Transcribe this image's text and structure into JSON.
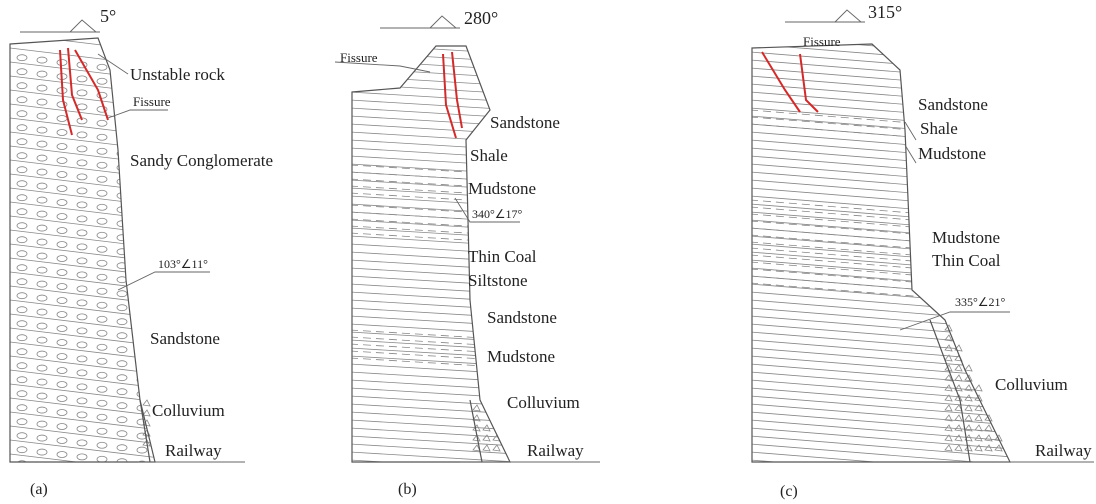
{
  "panels": [
    {
      "orientation": "5°",
      "caption": "(a)",
      "labels": [
        "Unstable rock",
        "Fissure",
        "Sandy Conglomerate",
        "103°∠11°",
        "Sandstone",
        "Colluvium",
        "Railway"
      ]
    },
    {
      "orientation": "280°",
      "caption": "(b)",
      "labels": [
        "Fissure",
        "Sandstone",
        "Shale",
        "Mudstone",
        "340°∠17°",
        "Thin Coal",
        "Siltstone",
        "Sandstone",
        "Mudstone",
        "Colluvium",
        "Railway"
      ]
    },
    {
      "orientation": "315°",
      "caption": "(c)",
      "labels": [
        "Fissure",
        "Sandstone",
        "Shale",
        "Mudstone",
        "Mudstone",
        "Thin Coal",
        "335°∠21°",
        "Colluvium",
        "Railway"
      ]
    }
  ]
}
